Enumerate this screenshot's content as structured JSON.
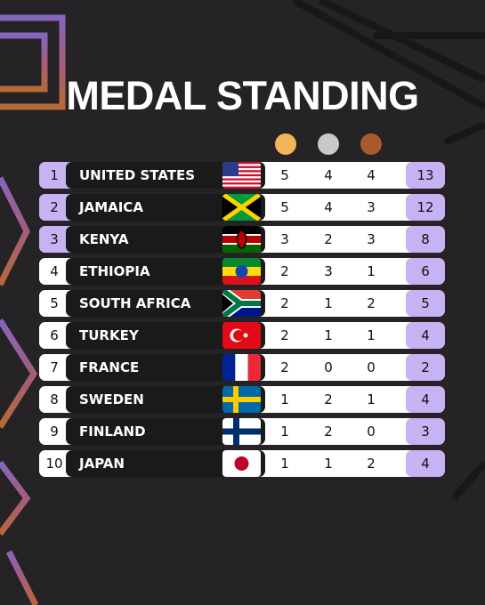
{
  "header": {
    "title": "MEDAL STANDING"
  },
  "table": {
    "rows": [
      [
        "1",
        "UNITED STATES",
        "5",
        "4",
        "4",
        "13"
      ],
      [
        "2",
        "JAMAICA",
        "5",
        "4",
        "3",
        "12"
      ],
      [
        "3",
        "KENYA",
        "3",
        "2",
        "3",
        "8"
      ],
      [
        "4",
        "ETHIOPIA",
        "2",
        "3",
        "1",
        "6"
      ],
      [
        "5",
        "SOUTH AFRICA",
        "2",
        "1",
        "2",
        "5"
      ],
      [
        "6",
        "TURKEY",
        "2",
        "1",
        "1",
        "4"
      ],
      [
        "7",
        "FRANCE",
        "2",
        "0",
        "0",
        "2"
      ],
      [
        "8",
        "SWEDEN",
        "1",
        "2",
        "1",
        "4"
      ],
      [
        "9",
        "FINLAND",
        "1",
        "2",
        "0",
        "3"
      ],
      [
        "10",
        "JAPAN",
        "1",
        "1",
        "2",
        "4"
      ]
    ]
  }
}
